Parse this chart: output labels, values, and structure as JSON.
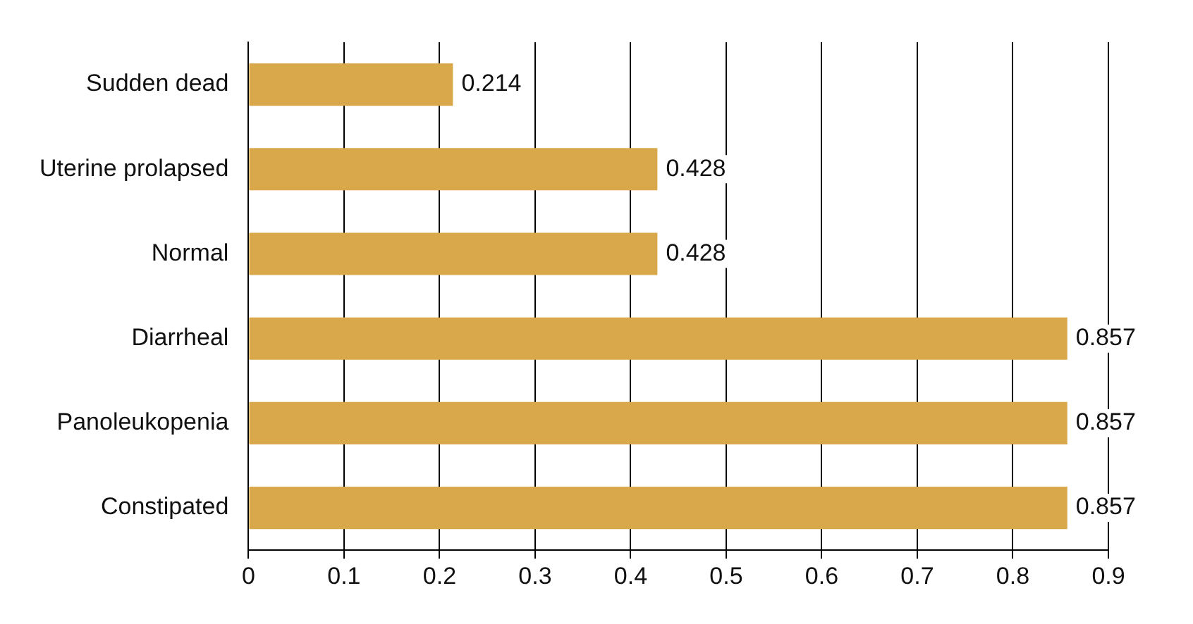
{
  "chart_data": {
    "type": "bar",
    "orientation": "horizontal",
    "categories": [
      "Sudden dead",
      "Uterine prolapsed",
      "Normal",
      "Diarrheal",
      "Panoleukopenia",
      "Constipated"
    ],
    "values": [
      0.214,
      0.428,
      0.428,
      0.857,
      0.857,
      0.857
    ],
    "color": "#d9a84a",
    "xlim": [
      0,
      0.9
    ],
    "xticks": [
      0,
      0.1,
      0.2,
      0.3,
      0.4,
      0.5,
      0.6,
      0.7,
      0.8,
      0.9
    ],
    "grid": "x",
    "data_labels": true,
    "legend": false
  }
}
